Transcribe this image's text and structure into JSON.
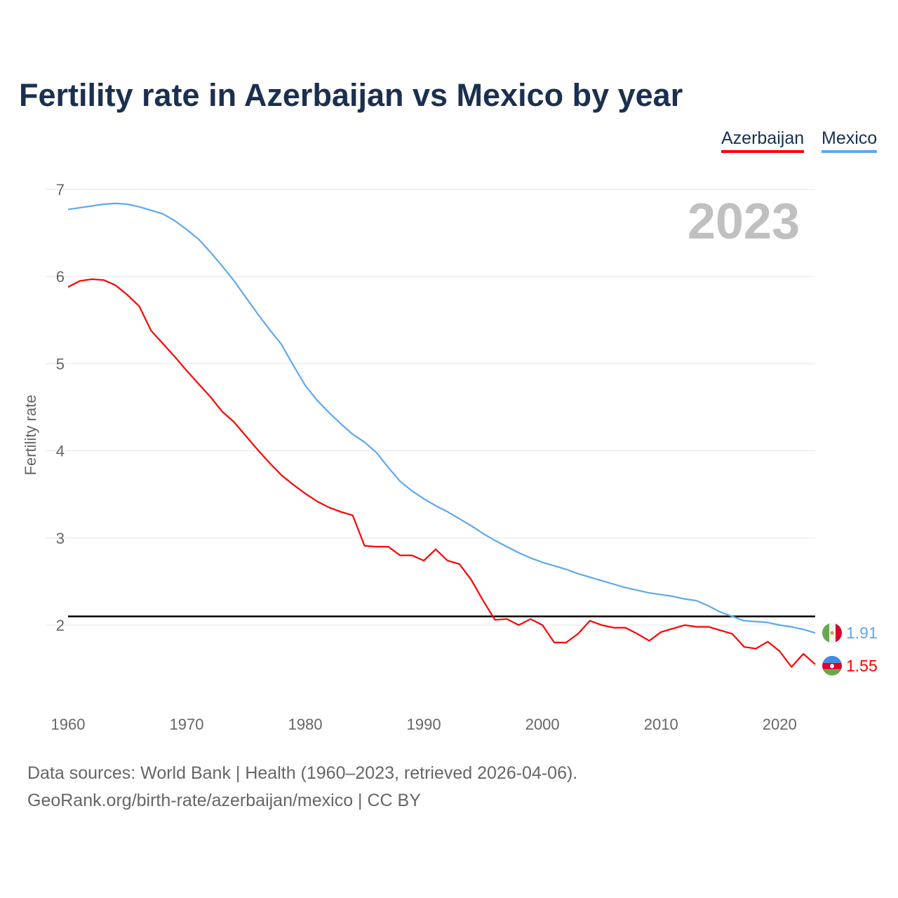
{
  "chart_data": {
    "type": "line",
    "title": "Fertility rate in Azerbaijan vs Mexico by year",
    "xlabel": "",
    "ylabel": "Fertility rate",
    "xlim": [
      1960,
      2023
    ],
    "ylim": [
      1.0,
      7.0
    ],
    "x_ticks": [
      1960,
      1970,
      1980,
      1990,
      2000,
      2010,
      2020
    ],
    "y_ticks": [
      2,
      3,
      4,
      5,
      6,
      7
    ],
    "grid": true,
    "legend_placement": "top-right",
    "year_label": "2023",
    "reference_line": 2.1,
    "x": [
      1960,
      1961,
      1962,
      1963,
      1964,
      1965,
      1966,
      1967,
      1968,
      1969,
      1970,
      1971,
      1972,
      1973,
      1974,
      1975,
      1976,
      1977,
      1978,
      1979,
      1980,
      1981,
      1982,
      1983,
      1984,
      1985,
      1986,
      1987,
      1988,
      1989,
      1990,
      1991,
      1992,
      1993,
      1994,
      1995,
      1996,
      1997,
      1998,
      1999,
      2000,
      2001,
      2002,
      2003,
      2004,
      2005,
      2006,
      2007,
      2008,
      2009,
      2010,
      2011,
      2012,
      2013,
      2014,
      2015,
      2016,
      2017,
      2018,
      2019,
      2020,
      2021,
      2022,
      2023
    ],
    "series": [
      {
        "name": "Azerbaijan",
        "color": "#ff0000",
        "end_label": "1.55",
        "values": [
          5.88,
          5.95,
          5.97,
          5.96,
          5.9,
          5.79,
          5.66,
          5.38,
          5.23,
          5.08,
          4.92,
          4.77,
          4.62,
          4.45,
          4.33,
          4.17,
          4.01,
          3.86,
          3.72,
          3.61,
          3.51,
          3.42,
          3.35,
          3.3,
          3.26,
          2.91,
          2.9,
          2.9,
          2.8,
          2.8,
          2.74,
          2.87,
          2.74,
          2.7,
          2.52,
          2.28,
          2.06,
          2.07,
          2.0,
          2.07,
          2.0,
          1.8,
          1.8,
          1.9,
          2.05,
          2.0,
          1.97,
          1.97,
          1.9,
          1.82,
          1.92,
          1.96,
          2.0,
          1.98,
          1.98,
          1.94,
          1.9,
          1.75,
          1.73,
          1.81,
          1.7,
          1.52,
          1.67,
          1.55
        ]
      },
      {
        "name": "Mexico",
        "color": "#5ea8ee",
        "end_label": "1.91",
        "values": [
          6.77,
          6.79,
          6.81,
          6.83,
          6.84,
          6.83,
          6.8,
          6.76,
          6.72,
          6.64,
          6.54,
          6.43,
          6.28,
          6.12,
          5.95,
          5.76,
          5.57,
          5.39,
          5.22,
          4.98,
          4.75,
          4.58,
          4.44,
          4.31,
          4.19,
          4.1,
          3.98,
          3.81,
          3.65,
          3.54,
          3.45,
          3.37,
          3.3,
          3.22,
          3.14,
          3.05,
          2.97,
          2.9,
          2.83,
          2.77,
          2.72,
          2.68,
          2.64,
          2.59,
          2.55,
          2.51,
          2.47,
          2.43,
          2.4,
          2.37,
          2.35,
          2.33,
          2.3,
          2.28,
          2.22,
          2.15,
          2.1,
          2.05,
          2.04,
          2.03,
          2.0,
          1.98,
          1.95,
          1.91
        ]
      }
    ]
  },
  "footer": {
    "line1": "Data sources: World Bank | Health (1960–2023, retrieved 2026-04-06).",
    "line2": "GeoRank.org/birth-rate/azerbaijan/mexico | CC BY"
  }
}
